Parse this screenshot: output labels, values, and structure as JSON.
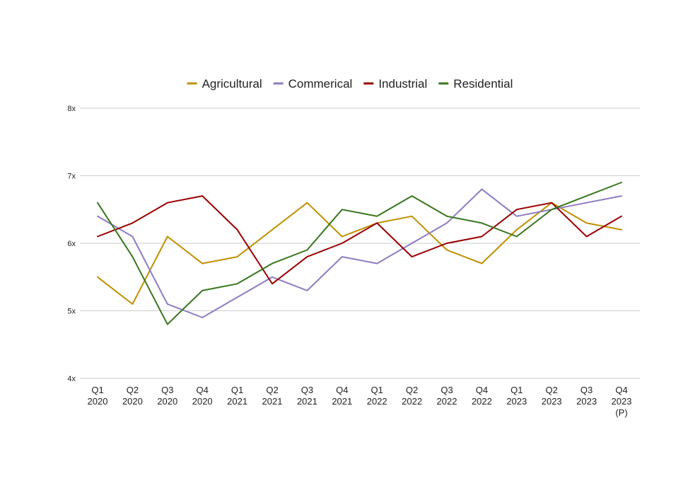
{
  "chart_data": {
    "type": "line",
    "title": "",
    "xlabel": "",
    "ylabel": "",
    "ylim": [
      4,
      8
    ],
    "yticks": [
      {
        "value": 4,
        "label": "4x"
      },
      {
        "value": 5,
        "label": "5x"
      },
      {
        "value": 6,
        "label": "6x"
      },
      {
        "value": 7,
        "label": "7x"
      },
      {
        "value": 8,
        "label": "8x"
      }
    ],
    "grid": true,
    "legend_position": "top-center",
    "categories": [
      [
        "Q1",
        "2020"
      ],
      [
        "Q2",
        "2020"
      ],
      [
        "Q3",
        "2020"
      ],
      [
        "Q4",
        "2020"
      ],
      [
        "Q1",
        "2021"
      ],
      [
        "Q2",
        "2021"
      ],
      [
        "Q3",
        "2021"
      ],
      [
        "Q4",
        "2021"
      ],
      [
        "Q1",
        "2022"
      ],
      [
        "Q2",
        "2022"
      ],
      [
        "Q3",
        "2022"
      ],
      [
        "Q4",
        "2022"
      ],
      [
        "Q1",
        "2023"
      ],
      [
        "Q2",
        "2023"
      ],
      [
        "Q3",
        "2023"
      ],
      [
        "Q4",
        "2023",
        "(P)"
      ]
    ],
    "series": [
      {
        "name": "Agricultural",
        "color": "#bf9000",
        "values": [
          5.5,
          5.1,
          6.1,
          5.7,
          5.8,
          6.2,
          6.6,
          6.1,
          6.3,
          6.4,
          5.9,
          5.7,
          6.2,
          6.6,
          6.3,
          6.2
        ]
      },
      {
        "name": "Commerical",
        "color": "#8e7cc3",
        "values": [
          6.4,
          6.1,
          5.1,
          4.9,
          5.2,
          5.5,
          5.3,
          5.8,
          5.7,
          6.0,
          6.3,
          6.8,
          6.4,
          6.5,
          6.6,
          6.7
        ]
      },
      {
        "name": "Industrial",
        "color": "#990000",
        "values": [
          6.1,
          6.3,
          6.6,
          6.7,
          6.2,
          5.4,
          5.8,
          6.0,
          6.3,
          5.8,
          6.0,
          6.1,
          6.5,
          6.6,
          6.1,
          6.4
        ]
      },
      {
        "name": "Residential",
        "color": "#38761d",
        "values": [
          6.6,
          5.8,
          4.8,
          5.3,
          5.4,
          5.7,
          5.9,
          6.5,
          6.4,
          6.7,
          6.4,
          6.3,
          6.1,
          6.5,
          6.7,
          6.9
        ]
      }
    ]
  }
}
